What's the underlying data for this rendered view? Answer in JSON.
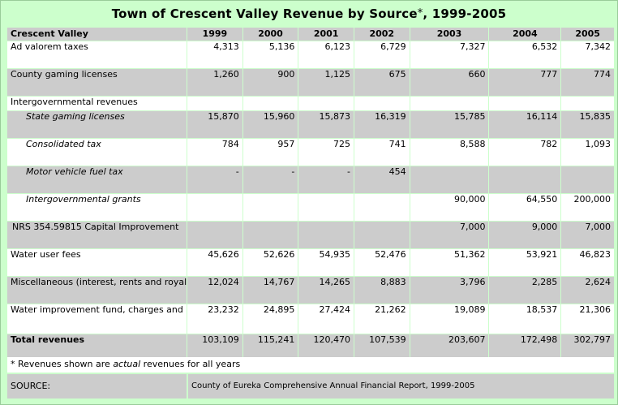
{
  "title": "Town of Crescent Valley Revenue by Source",
  "title_mark": "*",
  "title_years": ", 1999-2005",
  "header": {
    "label": "Crescent Valley",
    "years": [
      "1999",
      "2000",
      "2001",
      "2002",
      "2003",
      "2004",
      "2005"
    ]
  },
  "rows": [
    {
      "label": "Ad valorem taxes",
      "style": "white",
      "values": [
        "4,313",
        "5,136",
        "6,123",
        "6,729",
        "7,327",
        "6,532",
        "7,342"
      ]
    },
    {
      "label": "County gaming licenses",
      "style": "gray",
      "values": [
        "1,260",
        "900",
        "1,125",
        "675",
        "660",
        "777",
        "774"
      ]
    },
    {
      "label": "Intergovernmental revenues",
      "style": "white",
      "values": [
        "",
        "",
        "",
        "",
        "",
        "",
        ""
      ]
    },
    {
      "label": "State gaming licenses",
      "style": "gray",
      "sub": true,
      "values": [
        "15,870",
        "15,960",
        "15,873",
        "16,319",
        "15,785",
        "16,114",
        "15,835"
      ]
    },
    {
      "label": "Consolidated tax",
      "style": "white",
      "sub": true,
      "values": [
        "784",
        "957",
        "725",
        "741",
        "8,588",
        "782",
        "1,093"
      ]
    },
    {
      "label": "Motor vehicle fuel tax",
      "style": "gray",
      "sub": true,
      "values": [
        "-",
        "-",
        "-",
        "454",
        "",
        "",
        ""
      ]
    },
    {
      "label": "Intergovernmental grants",
      "style": "white",
      "sub": true,
      "values": [
        "",
        "",
        "",
        "",
        "90,000",
        "64,550",
        "200,000"
      ]
    },
    {
      "label": "NRS 354.59815 Capital Improvement",
      "style": "gray",
      "nrs": true,
      "values": [
        "",
        "",
        "",
        "",
        "7,000",
        "9,000",
        "7,000"
      ]
    },
    {
      "label": "Water user fees",
      "style": "white",
      "values": [
        "45,626",
        "52,626",
        "54,935",
        "52,476",
        "51,362",
        "53,921",
        "46,823"
      ]
    },
    {
      "label": "Miscellaneous (interest, rents and royalties, refunds)",
      "style": "gray",
      "values": [
        "12,024",
        "14,767",
        "14,265",
        "8,883",
        "3,796",
        "2,285",
        "2,624"
      ]
    },
    {
      "label": "Water improvement fund, charges and interest",
      "style": "white",
      "values": [
        "23,232",
        "24,895",
        "27,424",
        "21,262",
        "19,089",
        "18,537",
        "21,306"
      ]
    },
    {
      "label": "Total revenues",
      "style": "gray",
      "bold": true,
      "values": [
        "103,109",
        "115,241",
        "120,470",
        "107,539",
        "203,607",
        "172,498",
        "302,797"
      ]
    }
  ],
  "note": {
    "prefix": "* Revenues shown are ",
    "emphasis": "actual",
    "suffix": " revenues for all years"
  },
  "source": {
    "label": "SOURCE:",
    "text": "County of Eureka Comprehensive Annual Financial Report, 1999-2005"
  },
  "colors": {
    "background": "#ccffcc",
    "row_gray": "#cccccc",
    "row_white": "#ffffff"
  }
}
